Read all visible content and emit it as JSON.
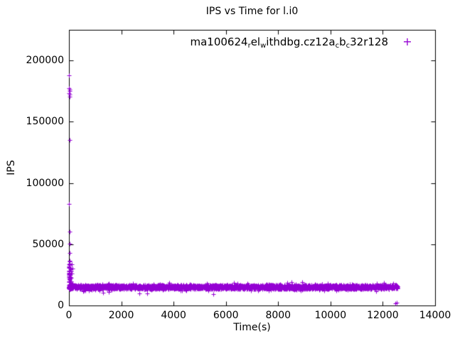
{
  "chart_data": {
    "type": "scatter",
    "title": "IPS vs Time for l.i0",
    "xlabel": "Time(s)",
    "ylabel": "IPS",
    "xlim": [
      0,
      14000
    ],
    "ylim": [
      0,
      225000
    ],
    "xticks": [
      0,
      2000,
      4000,
      6000,
      8000,
      10000,
      12000,
      14000
    ],
    "xtick_labels": [
      "0",
      "2000",
      "4000",
      "6000",
      "8000",
      "10000",
      "12000",
      "14000"
    ],
    "yticks": [
      0,
      50000,
      100000,
      150000,
      200000
    ],
    "ytick_labels": [
      "0",
      "50000",
      "100000",
      "150000",
      "200000"
    ],
    "grid": false,
    "legend_position": "top-right-inside",
    "marker": "plus",
    "marker_color": "#9400d3",
    "series": [
      {
        "name": "ma100624_rel_withdbg.cz12a_cb_c32r128",
        "display_segments": [
          {
            "t": "ma100624"
          },
          {
            "t": "r",
            "sub": true
          },
          {
            "t": "el"
          },
          {
            "t": "w",
            "sub": true
          },
          {
            "t": "ithdbg.cz12a"
          },
          {
            "t": "c",
            "sub": true
          },
          {
            "t": "b"
          },
          {
            "t": "c",
            "sub": true
          },
          {
            "t": "32r128"
          }
        ],
        "marker_glyph": "+",
        "band": {
          "x_min": 0,
          "x_max": 12560,
          "y_center": 15100,
          "y_spread": 2000,
          "y_tail": 2500,
          "count": 3800
        },
        "startup_spike": {
          "x_max": 140,
          "y_min": 14000,
          "y_max": 36000,
          "count": 90
        },
        "outliers": [
          [
            12,
            188000
          ],
          [
            8,
            177500
          ],
          [
            15,
            176000
          ],
          [
            22,
            175000
          ],
          [
            10,
            173500
          ],
          [
            18,
            172000
          ],
          [
            25,
            170500
          ],
          [
            14,
            135000
          ],
          [
            9,
            83000
          ],
          [
            20,
            60500
          ],
          [
            16,
            50500
          ],
          [
            24,
            43000
          ],
          [
            30,
            36500
          ],
          [
            12,
            33500
          ],
          [
            26,
            30500
          ],
          [
            8,
            28000
          ],
          [
            35,
            25500
          ],
          [
            45,
            23000
          ],
          [
            18,
            21000
          ],
          [
            55,
            19500
          ],
          [
            70,
            18500
          ]
        ],
        "stragglers": [
          [
            870,
            12600
          ],
          [
            1310,
            10600
          ],
          [
            1520,
            10900
          ],
          [
            2210,
            13200
          ],
          [
            2700,
            9900
          ],
          [
            2980,
            9800
          ],
          [
            5520,
            9000
          ],
          [
            12480,
            1600
          ],
          [
            12530,
            2400
          ]
        ]
      }
    ]
  }
}
